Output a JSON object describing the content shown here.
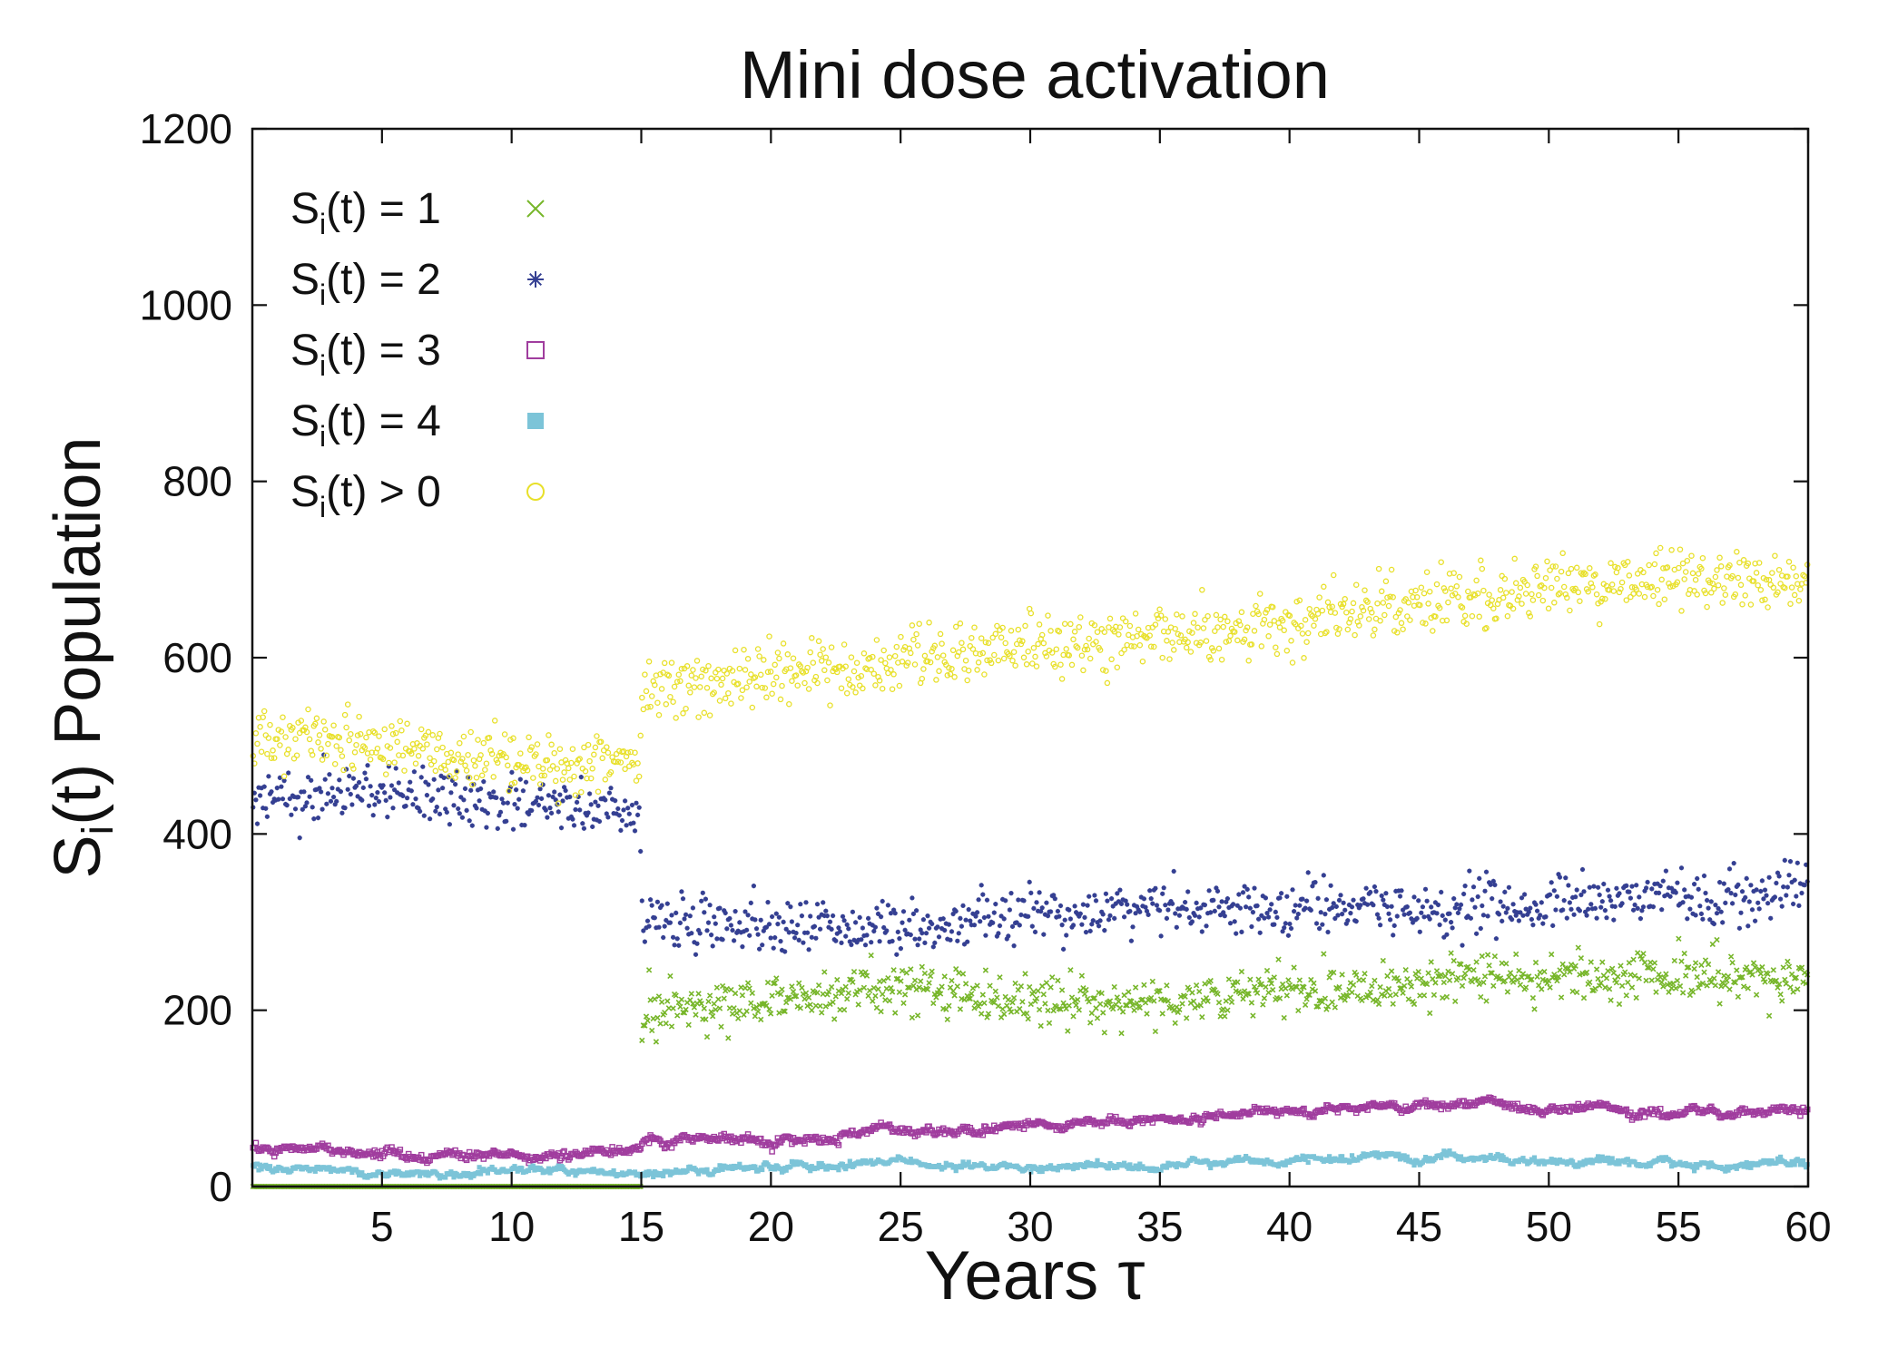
{
  "chart_data": {
    "type": "scatter",
    "title": "Mini dose activation",
    "xlabel": "Years τ",
    "ylabel": "S_i(t) Population",
    "ylabel_parts": {
      "main": "S",
      "sub": "i",
      "rest": "(t) Population"
    },
    "xlim": [
      0,
      60
    ],
    "ylim": [
      0,
      1200
    ],
    "xticks": [
      5,
      10,
      15,
      20,
      25,
      30,
      35,
      40,
      45,
      50,
      55,
      60
    ],
    "yticks": [
      0,
      200,
      400,
      600,
      800,
      1000,
      1200
    ],
    "legend_position": "top-left",
    "intervention_year": 15,
    "series": [
      {
        "name": "S_i(t) = 1",
        "label_main": "S",
        "label_sub": "i",
        "label_rest": "(t) = 1",
        "marker": "cross",
        "color": "#77b62a",
        "keyframes_x": [
          0,
          14.95,
          15.05,
          20,
          25,
          30,
          35,
          40,
          45,
          50,
          55,
          60
        ],
        "keyframes_y": [
          0,
          0,
          200,
          212,
          228,
          210,
          210,
          222,
          232,
          240,
          240,
          232
        ],
        "noise": 14
      },
      {
        "name": "S_i(t) = 2",
        "label_main": "S",
        "label_sub": "i",
        "label_rest": "(t) = 2",
        "marker": "star",
        "color": "#343f92",
        "keyframes_x": [
          0,
          5,
          10,
          14.95,
          15.05,
          20,
          25,
          30,
          35,
          40,
          45,
          50,
          55,
          60
        ],
        "keyframes_y": [
          442,
          450,
          432,
          428,
          302,
          298,
          292,
          310,
          315,
          318,
          312,
          318,
          330,
          338
        ],
        "noise": 15
      },
      {
        "name": "S_i(t) = 3",
        "label_main": "S",
        "label_sub": "i",
        "label_rest": "(t) = 3",
        "marker": "square-open",
        "color": "#a03d9e",
        "keyframes_x": [
          0,
          5,
          10,
          14.95,
          15.05,
          20,
          25,
          30,
          35,
          40,
          45,
          50,
          55,
          60
        ],
        "keyframes_y": [
          45,
          38,
          35,
          40,
          52,
          55,
          62,
          68,
          75,
          85,
          93,
          88,
          85,
          82
        ],
        "noise": 5
      },
      {
        "name": "S_i(t) = 4",
        "label_main": "S",
        "label_sub": "i",
        "label_rest": "(t) = 4",
        "marker": "square-filled",
        "color": "#7cc4d8",
        "keyframes_x": [
          0,
          5,
          10,
          14.95,
          15.05,
          20,
          25,
          30,
          35,
          40,
          45,
          50,
          55,
          60
        ],
        "keyframes_y": [
          25,
          18,
          15,
          14,
          18,
          24,
          25,
          20,
          25,
          30,
          32,
          28,
          26,
          28
        ],
        "noise": 4
      },
      {
        "name": "S_i(t) > 0",
        "label_main": "S",
        "label_sub": "i",
        "label_rest": "(t) > 0",
        "marker": "circle-open",
        "color": "#e8e02a",
        "keyframes_x": [
          0,
          5,
          10,
          14.95,
          15.05,
          20,
          25,
          30,
          35,
          40,
          45,
          50,
          55,
          60
        ],
        "keyframes_y": [
          508,
          500,
          485,
          478,
          570,
          580,
          598,
          612,
          625,
          640,
          665,
          680,
          690,
          688
        ],
        "noise": 17
      }
    ]
  }
}
